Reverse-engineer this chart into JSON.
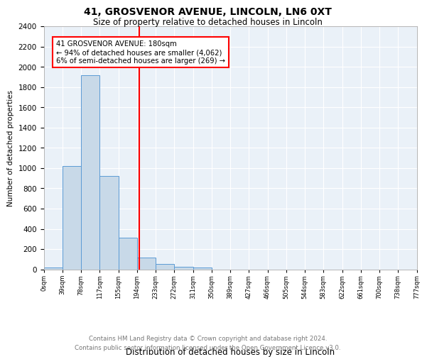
{
  "title_line1": "41, GROSVENOR AVENUE, LINCOLN, LN6 0XT",
  "title_line2": "Size of property relative to detached houses in Lincoln",
  "xlabel": "Distribution of detached houses by size in Lincoln",
  "ylabel": "Number of detached properties",
  "bin_labels": [
    "0sqm",
    "39sqm",
    "78sqm",
    "117sqm",
    "155sqm",
    "194sqm",
    "233sqm",
    "272sqm",
    "311sqm",
    "350sqm",
    "389sqm",
    "427sqm",
    "466sqm",
    "505sqm",
    "544sqm",
    "583sqm",
    "622sqm",
    "661sqm",
    "700sqm",
    "738sqm",
    "777sqm"
  ],
  "bar_values": [
    15,
    1020,
    1920,
    920,
    310,
    115,
    52,
    28,
    15,
    0,
    0,
    0,
    0,
    0,
    0,
    0,
    0,
    0,
    0,
    0
  ],
  "bar_color": "#c8d9e8",
  "bar_edge_color": "#5b9bd5",
  "vline_x_bin": 4.62,
  "vline_color": "red",
  "annotation_text_line1": "41 GROSVENOR AVENUE: 180sqm",
  "annotation_text_line2": "← 94% of detached houses are smaller (4,062)",
  "annotation_text_line3": "6% of semi-detached houses are larger (269) →",
  "annotation_box_color": "white",
  "annotation_box_edge": "red",
  "ylim": [
    0,
    2400
  ],
  "yticks": [
    0,
    200,
    400,
    600,
    800,
    1000,
    1200,
    1400,
    1600,
    1800,
    2000,
    2200,
    2400
  ],
  "footer_text": "Contains HM Land Registry data © Crown copyright and database right 2024.\nContains public sector information licensed under the Open Government Licence v3.0.",
  "plot_bg_color": "#eaf1f8"
}
